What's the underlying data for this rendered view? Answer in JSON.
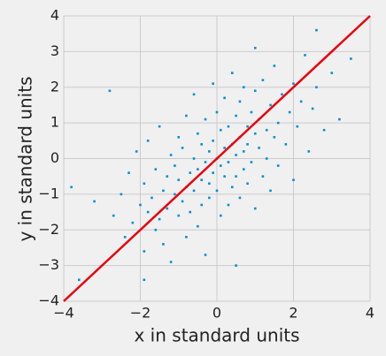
{
  "chart_data": {
    "type": "scatter",
    "x_label": "x in standard units",
    "y_label": "y in standard units",
    "color": "#008fd5",
    "x": [
      -3.8,
      -3.2,
      -2.8,
      -2.7,
      -2.5,
      -2.4,
      -2.3,
      -2.2,
      -2.1,
      -2.0,
      -1.9,
      -1.9,
      -1.8,
      -1.8,
      -1.7,
      -1.6,
      -1.6,
      -1.5,
      -1.5,
      -1.4,
      -1.4,
      -1.3,
      -1.3,
      -1.2,
      -1.2,
      -1.1,
      -1.1,
      -1.0,
      -1.0,
      -1.0,
      -0.9,
      -0.9,
      -0.8,
      -0.8,
      -0.8,
      -0.7,
      -0.7,
      -0.6,
      -0.6,
      -0.6,
      -0.5,
      -0.5,
      -0.5,
      -0.4,
      -0.4,
      -0.4,
      -0.3,
      -0.3,
      -0.3,
      -0.2,
      -0.2,
      -0.2,
      -0.1,
      -0.1,
      -0.1,
      0.0,
      0.0,
      0.0,
      0.1,
      0.1,
      0.1,
      0.2,
      0.2,
      0.2,
      0.3,
      0.3,
      0.3,
      0.4,
      0.4,
      0.4,
      0.5,
      0.5,
      0.5,
      0.6,
      0.6,
      0.6,
      0.7,
      0.7,
      0.7,
      0.8,
      0.8,
      0.8,
      0.9,
      0.9,
      1.0,
      1.0,
      1.0,
      1.1,
      1.1,
      1.2,
      1.2,
      1.3,
      1.3,
      1.4,
      1.4,
      1.5,
      1.5,
      1.6,
      1.6,
      1.7,
      1.8,
      1.9,
      2.0,
      2.0,
      2.1,
      2.2,
      2.3,
      2.4,
      2.5,
      2.6,
      2.8,
      3.0,
      3.2,
      3.5,
      2.6,
      1.0,
      0.5,
      -1.9,
      -3.6
    ],
    "y": [
      -0.8,
      -1.2,
      1.9,
      -1.6,
      -1.0,
      -2.2,
      -0.4,
      -1.8,
      0.2,
      -1.3,
      -2.6,
      -0.7,
      -1.5,
      0.5,
      -1.1,
      -2.0,
      -0.3,
      -1.7,
      0.9,
      -0.9,
      -2.4,
      -0.5,
      -1.4,
      0.1,
      -2.9,
      -1.0,
      -0.2,
      -1.6,
      0.6,
      -0.6,
      -1.2,
      0.3,
      -0.8,
      -2.2,
      1.2,
      -0.4,
      -1.5,
      0.0,
      -0.9,
      1.8,
      -0.3,
      -1.9,
      0.7,
      -0.6,
      0.4,
      -1.3,
      -0.1,
      1.1,
      -2.7,
      -0.7,
      0.2,
      -1.1,
      0.5,
      -0.4,
      2.1,
      0.0,
      -0.9,
      1.3,
      -0.2,
      0.8,
      -1.6,
      0.3,
      -0.5,
      1.7,
      -0.1,
      0.9,
      -1.3,
      0.4,
      -0.8,
      2.4,
      0.1,
      1.2,
      -0.5,
      0.6,
      -1.1,
      1.6,
      0.2,
      -0.3,
      2.0,
      0.9,
      -0.7,
      0.4,
      1.3,
      -0.1,
      0.7,
      -1.4,
      1.9,
      0.3,
      1.1,
      -0.5,
      2.2,
      0.8,
      0.0,
      1.5,
      -0.9,
      0.6,
      2.6,
      1.0,
      -0.2,
      1.8,
      0.4,
      1.3,
      -0.6,
      2.1,
      0.9,
      1.6,
      2.9,
      0.2,
      1.4,
      2.0,
      0.8,
      2.4,
      1.1,
      2.8,
      3.6,
      3.1,
      -3.0,
      -3.4,
      -3.4
    ],
    "line": {
      "x": [
        -4,
        4
      ],
      "y": [
        -4,
        4
      ],
      "color": "#e8000b"
    },
    "xlim": [
      -4,
      4
    ],
    "ylim": [
      -4,
      4
    ],
    "xticks": [
      {
        "value": -4,
        "label": "−4"
      },
      {
        "value": -2,
        "label": "−2"
      },
      0,
      2,
      4
    ],
    "yticks": [
      {
        "value": -4,
        "label": "−4"
      },
      {
        "value": -3,
        "label": "−3"
      },
      {
        "value": -2,
        "label": "−2"
      },
      {
        "value": -1,
        "label": "−1"
      },
      0,
      1,
      2,
      3,
      4
    ],
    "grid": true
  }
}
